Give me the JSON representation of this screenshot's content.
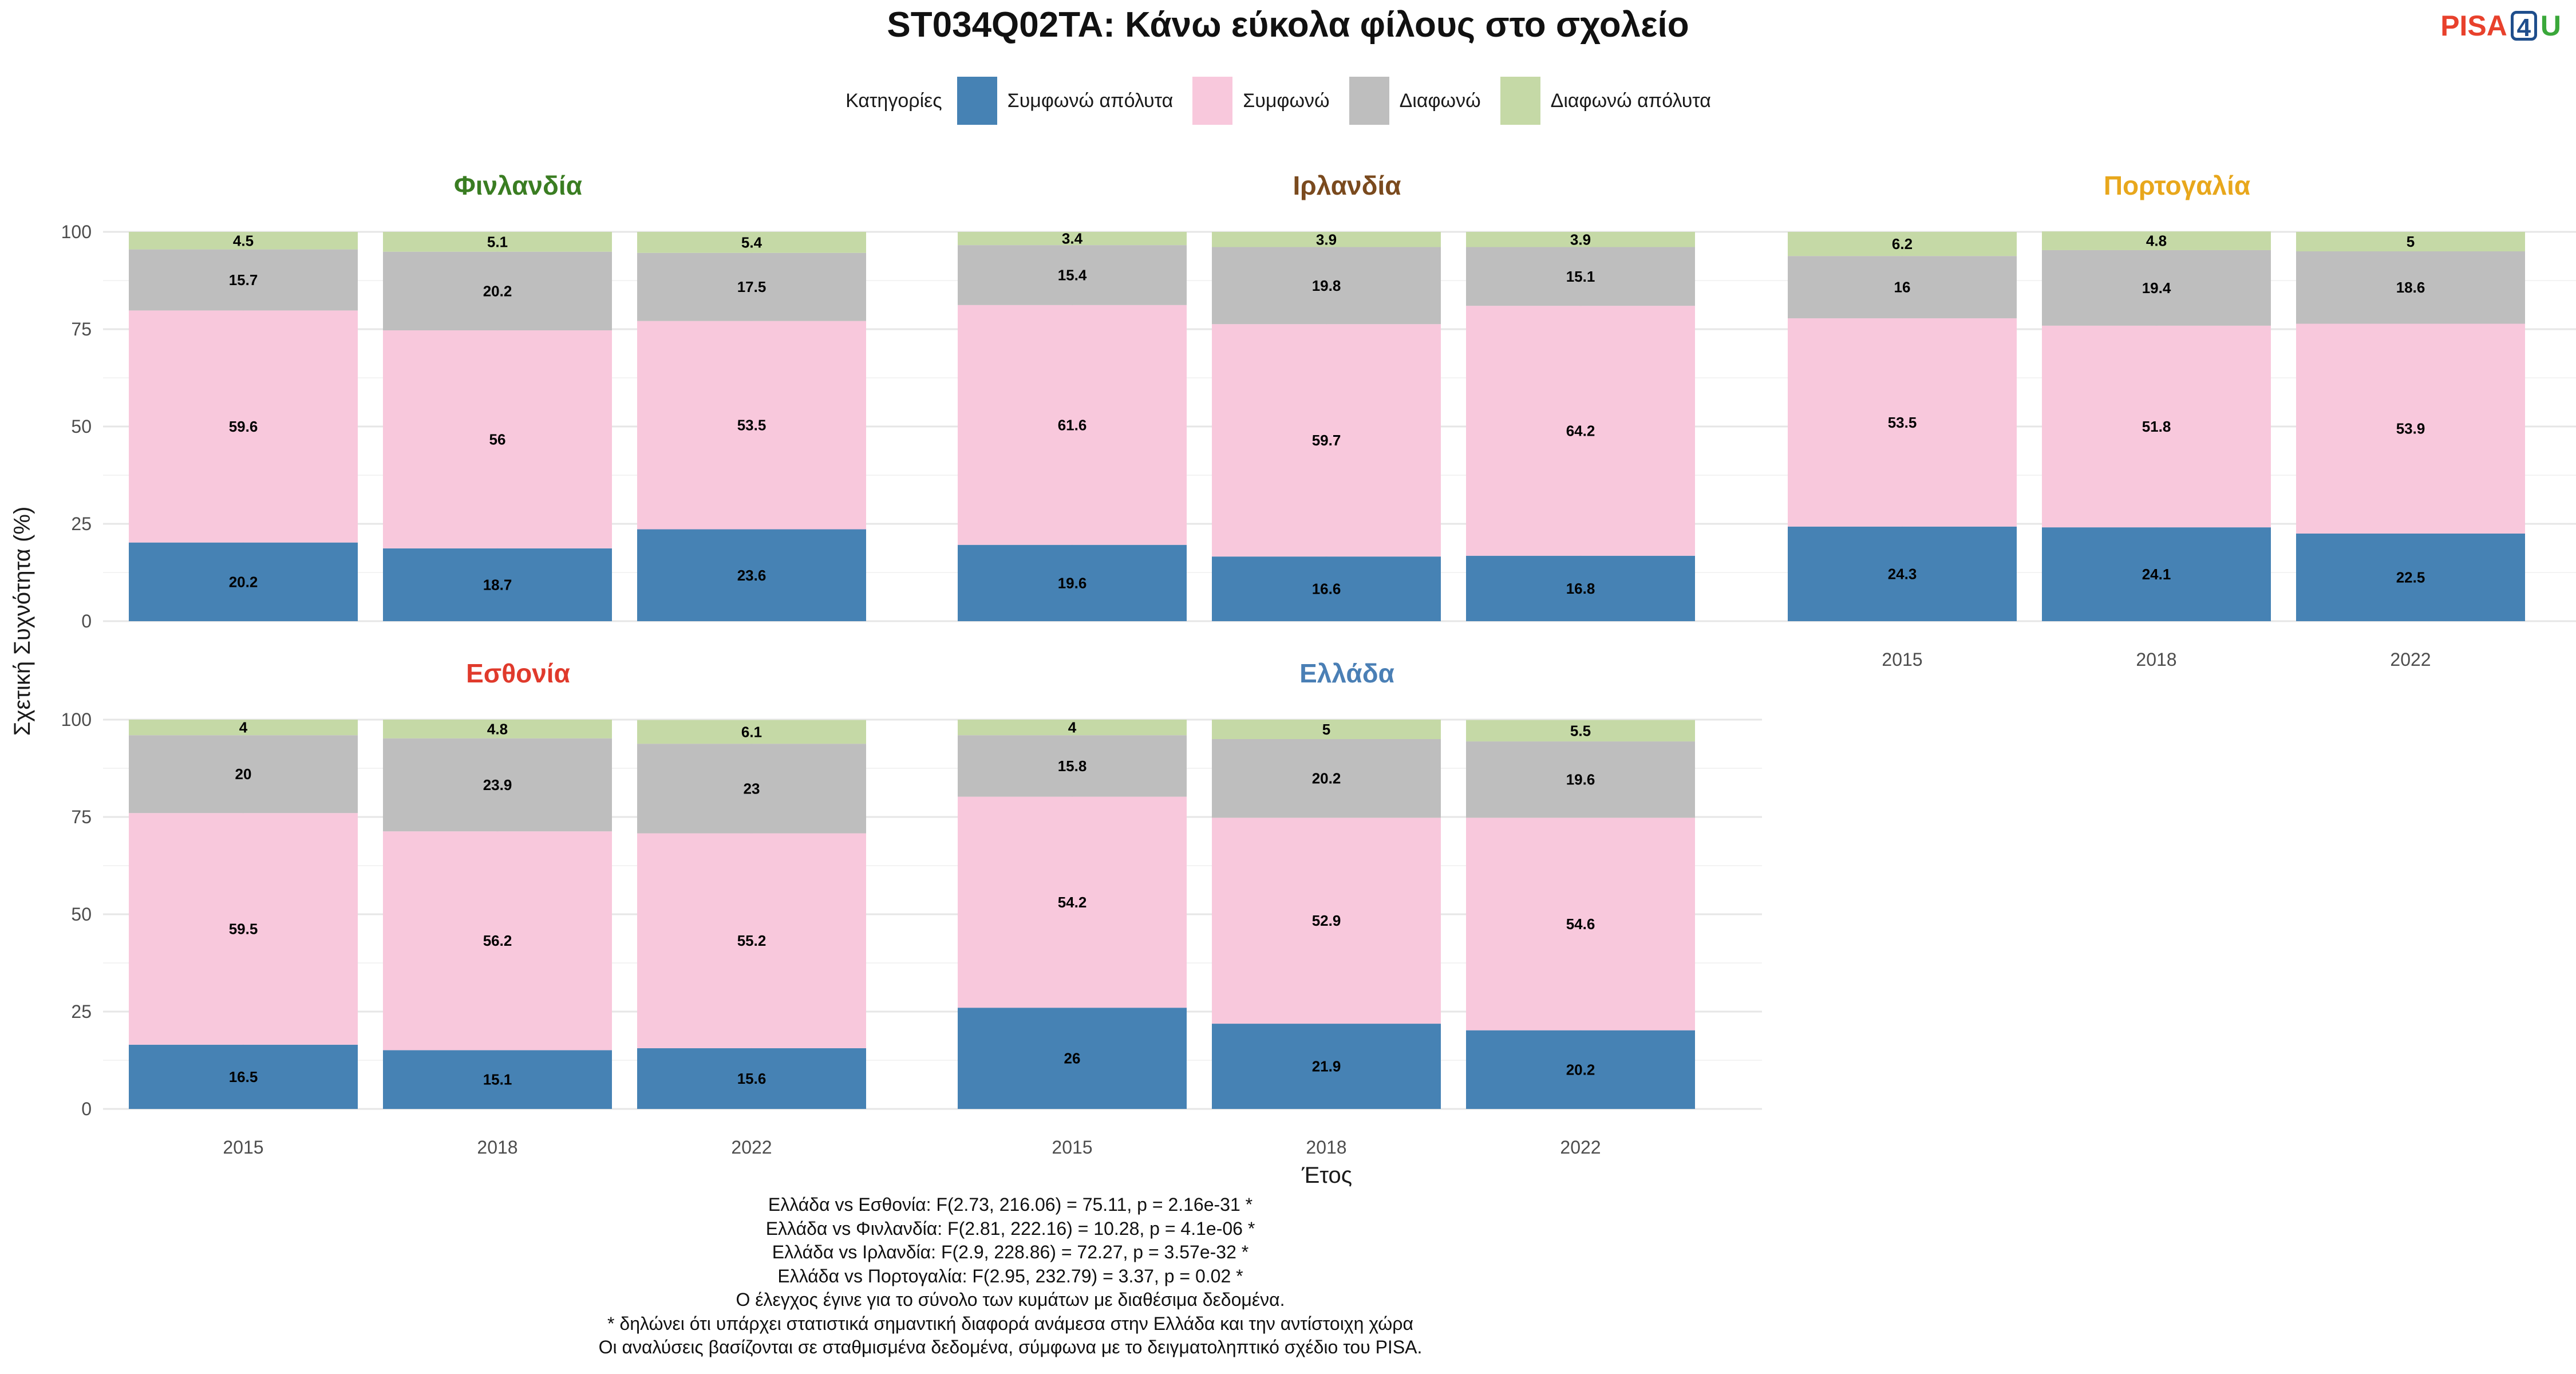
{
  "title": "ST034Q02TA: Κάνω εύκολα φίλους στο σχολείο",
  "logo": {
    "text_left": "PISA",
    "text_box": "4",
    "text_right": "U"
  },
  "legend": {
    "title": "Κατηγορίες",
    "items": [
      {
        "label": "Συμφωνώ απόλυτα",
        "color": "#4682b4"
      },
      {
        "label": "Συμφωνώ",
        "color": "#f8c8dc"
      },
      {
        "label": "Διαφωνώ",
        "color": "#bebebe"
      },
      {
        "label": "Διαφωνώ απόλυτα",
        "color": "#c5d9a6"
      }
    ]
  },
  "chart_data": {
    "type": "bar",
    "stacked": true,
    "xlabel": "Έτος",
    "ylabel": "Σχετική Συχνότητα (%)",
    "ylim": [
      0,
      100
    ],
    "yticks": [
      0,
      25,
      50,
      75,
      100
    ],
    "categories": [
      "2015",
      "2018",
      "2022"
    ],
    "series_order": [
      "Συμφωνώ απόλυτα",
      "Συμφωνώ",
      "Διαφωνώ",
      "Διαφωνώ απόλυτα"
    ],
    "panels": [
      {
        "name": "Φινλανδία",
        "color": "#3a7d22",
        "values": [
          [
            20.2,
            59.6,
            15.7,
            4.5
          ],
          [
            18.7,
            56,
            20.2,
            5.1
          ],
          [
            23.6,
            53.5,
            17.5,
            5.4
          ]
        ]
      },
      {
        "name": "Ιρλανδία",
        "color": "#7a4a1e",
        "values": [
          [
            19.6,
            61.6,
            15.4,
            3.4
          ],
          [
            16.6,
            59.7,
            19.8,
            3.9
          ],
          [
            16.8,
            64.2,
            15.1,
            3.9
          ]
        ]
      },
      {
        "name": "Πορτογαλία",
        "color": "#e8a71c",
        "values": [
          [
            24.3,
            53.5,
            16,
            6.2
          ],
          [
            24.1,
            51.8,
            19.4,
            4.8
          ],
          [
            22.5,
            53.9,
            18.6,
            5
          ]
        ]
      },
      {
        "name": "Εσθονία",
        "color": "#e03a2c",
        "values": [
          [
            16.5,
            59.5,
            20,
            4
          ],
          [
            15.1,
            56.2,
            23.9,
            4.8
          ],
          [
            15.6,
            55.2,
            23,
            6.1
          ]
        ]
      },
      {
        "name": "Ελλάδα",
        "color": "#4a7fb5",
        "values": [
          [
            26,
            54.2,
            15.8,
            4
          ],
          [
            21.9,
            52.9,
            20.2,
            5
          ],
          [
            20.2,
            54.6,
            19.6,
            5.5
          ]
        ]
      }
    ]
  },
  "notes": [
    "Ελλάδα vs Εσθονία: F(2.73, 216.06) = 75.11, p = 2.16e-31 *",
    "Ελλάδα vs Φινλανδία: F(2.81, 222.16) = 10.28, p = 4.1e-06 *",
    "Ελλάδα vs Ιρλανδία: F(2.9, 228.86) = 72.27, p = 3.57e-32 *",
    "Ελλάδα vs Πορτογαλία: F(2.95, 232.79) = 3.37, p = 0.02 *",
    "Ο έλεγχος έγινε για το σύνολο των κυμάτων με διαθέσιμα δεδομένα.",
    "* δηλώνει ότι υπάρχει στατιστικά σημαντική διαφορά ανάμεσα στην Ελλάδα και την αντίστοιχη χώρα",
    "Οι αναλύσεις βασίζονται σε σταθμισμένα δεδομένα, σύμφωνα με το δειγματοληπτικό σχέδιο του PISA."
  ]
}
